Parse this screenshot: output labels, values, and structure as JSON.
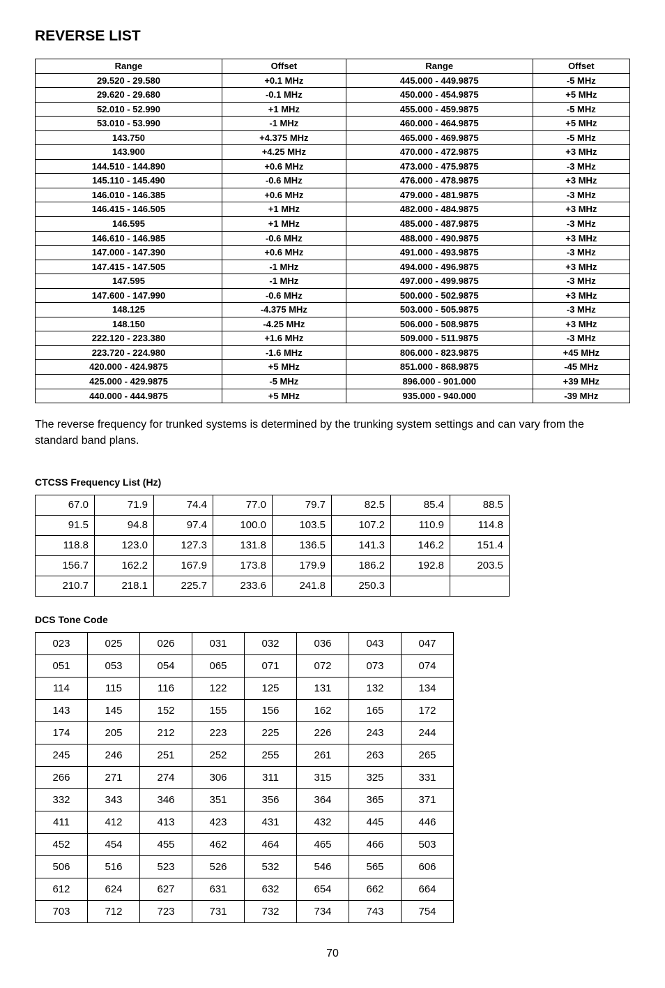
{
  "title": "REVERSE LIST",
  "reverse_table": {
    "headers": [
      "Range",
      "Offset",
      "Range",
      "Offset"
    ],
    "rows": [
      [
        "29.520 - 29.580",
        "+0.1 MHz",
        "445.000 - 449.9875",
        "-5 MHz"
      ],
      [
        "29.620 - 29.680",
        "-0.1 MHz",
        "450.000 - 454.9875",
        "+5 MHz"
      ],
      [
        "52.010 - 52.990",
        "+1 MHz",
        "455.000 - 459.9875",
        "-5 MHz"
      ],
      [
        "53.010 - 53.990",
        "-1 MHz",
        "460.000 - 464.9875",
        "+5 MHz"
      ],
      [
        "143.750",
        "+4.375 MHz",
        "465.000 - 469.9875",
        "-5 MHz"
      ],
      [
        "143.900",
        "+4.25 MHz",
        "470.000 - 472.9875",
        "+3 MHz"
      ],
      [
        "144.510 - 144.890",
        "+0.6 MHz",
        "473.000 - 475.9875",
        "-3 MHz"
      ],
      [
        "145.110 - 145.490",
        "-0.6 MHz",
        "476.000 - 478.9875",
        "+3 MHz"
      ],
      [
        "146.010 - 146.385",
        "+0.6 MHz",
        "479.000 - 481.9875",
        "-3 MHz"
      ],
      [
        "146.415 - 146.505",
        "+1 MHz",
        "482.000 - 484.9875",
        "+3 MHz"
      ],
      [
        "146.595",
        "+1 MHz",
        "485.000 - 487.9875",
        "-3 MHz"
      ],
      [
        "146.610 - 146.985",
        "-0.6 MHz",
        "488.000 - 490.9875",
        "+3 MHz"
      ],
      [
        "147.000 - 147.390",
        "+0.6 MHz",
        "491.000 - 493.9875",
        "-3 MHz"
      ],
      [
        "147.415 - 147.505",
        "-1 MHz",
        "494.000 - 496.9875",
        "+3 MHz"
      ],
      [
        "147.595",
        "-1 MHz",
        "497.000 - 499.9875",
        "-3 MHz"
      ],
      [
        "147.600 - 147.990",
        "-0.6 MHz",
        "500.000 - 502.9875",
        "+3 MHz"
      ],
      [
        "148.125",
        "-4.375 MHz",
        "503.000 - 505.9875",
        "-3 MHz"
      ],
      [
        "148.150",
        "-4.25 MHz",
        "506.000 - 508.9875",
        "+3 MHz"
      ],
      [
        "222.120 - 223.380",
        "+1.6 MHz",
        "509.000 - 511.9875",
        "-3 MHz"
      ],
      [
        "223.720 - 224.980",
        "-1.6 MHz",
        "806.000 - 823.9875",
        "+45 MHz"
      ],
      [
        "420.000 - 424.9875",
        "+5 MHz",
        "851.000 - 868.9875",
        "-45 MHz"
      ],
      [
        "425.000 - 429.9875",
        "-5 MHz",
        "896.000 - 901.000",
        "+39 MHz"
      ],
      [
        "440.000 - 444.9875",
        "+5 MHz",
        "935.000 - 940.000",
        "-39 MHz"
      ]
    ]
  },
  "note": "The reverse frequency for trunked systems is determined by the trunking system settings and can vary from the standard band plans.",
  "ctcss_heading": "CTCSS Frequency List (Hz)",
  "ctcss": [
    [
      "67.0",
      "71.9",
      "74.4",
      "77.0",
      "79.7",
      "82.5",
      "85.4",
      "88.5"
    ],
    [
      "91.5",
      "94.8",
      "97.4",
      "100.0",
      "103.5",
      "107.2",
      "110.9",
      "114.8"
    ],
    [
      "118.8",
      "123.0",
      "127.3",
      "131.8",
      "136.5",
      "141.3",
      "146.2",
      "151.4"
    ],
    [
      "156.7",
      "162.2",
      "167.9",
      "173.8",
      "179.9",
      "186.2",
      "192.8",
      "203.5"
    ],
    [
      "210.7",
      "218.1",
      "225.7",
      "233.6",
      "241.8",
      "250.3",
      "",
      ""
    ]
  ],
  "dcs_heading": "DCS Tone Code",
  "dcs": [
    [
      "023",
      "025",
      "026",
      "031",
      "032",
      "036",
      "043",
      "047"
    ],
    [
      "051",
      "053",
      "054",
      "065",
      "071",
      "072",
      "073",
      "074"
    ],
    [
      "114",
      "115",
      "116",
      "122",
      "125",
      "131",
      "132",
      "134"
    ],
    [
      "143",
      "145",
      "152",
      "155",
      "156",
      "162",
      "165",
      "172"
    ],
    [
      "174",
      "205",
      "212",
      "223",
      "225",
      "226",
      "243",
      "244"
    ],
    [
      "245",
      "246",
      "251",
      "252",
      "255",
      "261",
      "263",
      "265"
    ],
    [
      "266",
      "271",
      "274",
      "306",
      "311",
      "315",
      "325",
      "331"
    ],
    [
      "332",
      "343",
      "346",
      "351",
      "356",
      "364",
      "365",
      "371"
    ],
    [
      "411",
      "412",
      "413",
      "423",
      "431",
      "432",
      "445",
      "446"
    ],
    [
      "452",
      "454",
      "455",
      "462",
      "464",
      "465",
      "466",
      "503"
    ],
    [
      "506",
      "516",
      "523",
      "526",
      "532",
      "546",
      "565",
      "606"
    ],
    [
      "612",
      "624",
      "627",
      "631",
      "632",
      "654",
      "662",
      "664"
    ],
    [
      "703",
      "712",
      "723",
      "731",
      "732",
      "734",
      "743",
      "754"
    ]
  ],
  "page_number": "70"
}
